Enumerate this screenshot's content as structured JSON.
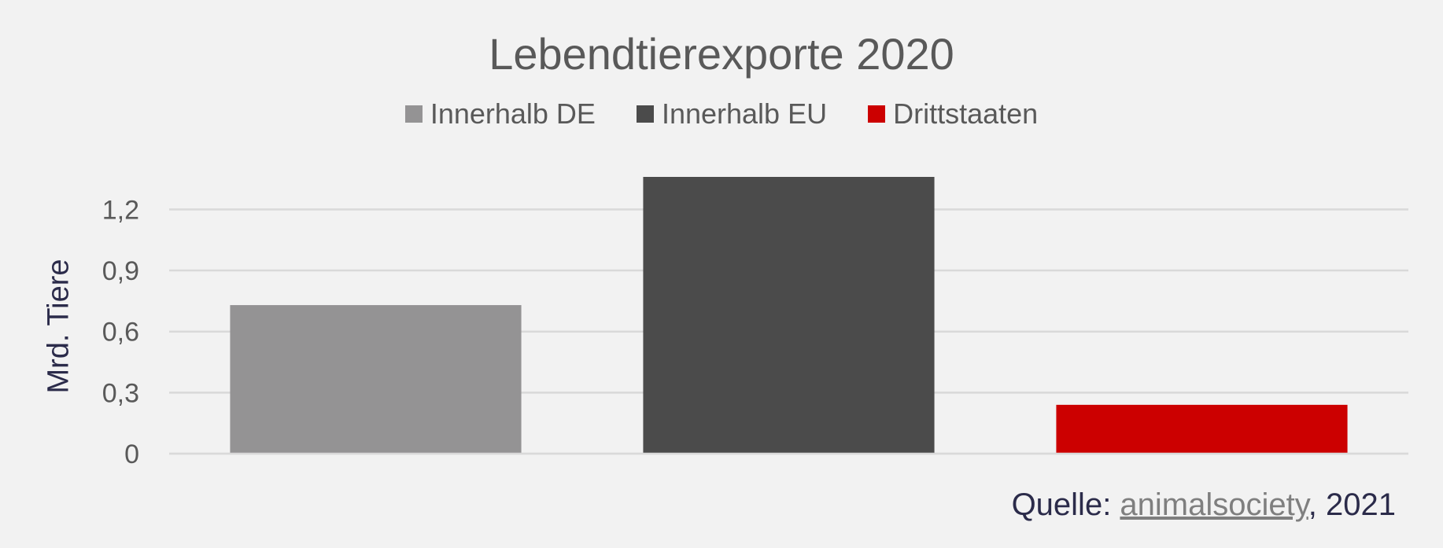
{
  "chart_data": {
    "type": "bar",
    "title": "Lebendtierexporte 2020",
    "ylabel": "Mrd. Tiere",
    "xlabel": "",
    "categories": [
      "Innerhalb DE",
      "Innerhalb EU",
      "Drittstaaten"
    ],
    "values": [
      0.73,
      1.36,
      0.24
    ],
    "colors": [
      "#949394",
      "#4b4b4b",
      "#cc0000"
    ],
    "ylim": [
      0,
      1.36
    ],
    "yticks": [
      0,
      0.3,
      0.6,
      0.9,
      1.2
    ],
    "ytick_labels": [
      "0",
      "0,3",
      "0,6",
      "0,9",
      "1,2"
    ],
    "grid": true,
    "legend_position": "top"
  },
  "legend": [
    {
      "label": "Innerhalb DE",
      "color": "#949394"
    },
    {
      "label": "Innerhalb EU",
      "color": "#4b4b4b"
    },
    {
      "label": "Drittstaaten",
      "color": "#cc0000"
    }
  ],
  "source": {
    "prefix": "Quelle: ",
    "link": "animalsociety",
    "suffix": ", 2021"
  }
}
